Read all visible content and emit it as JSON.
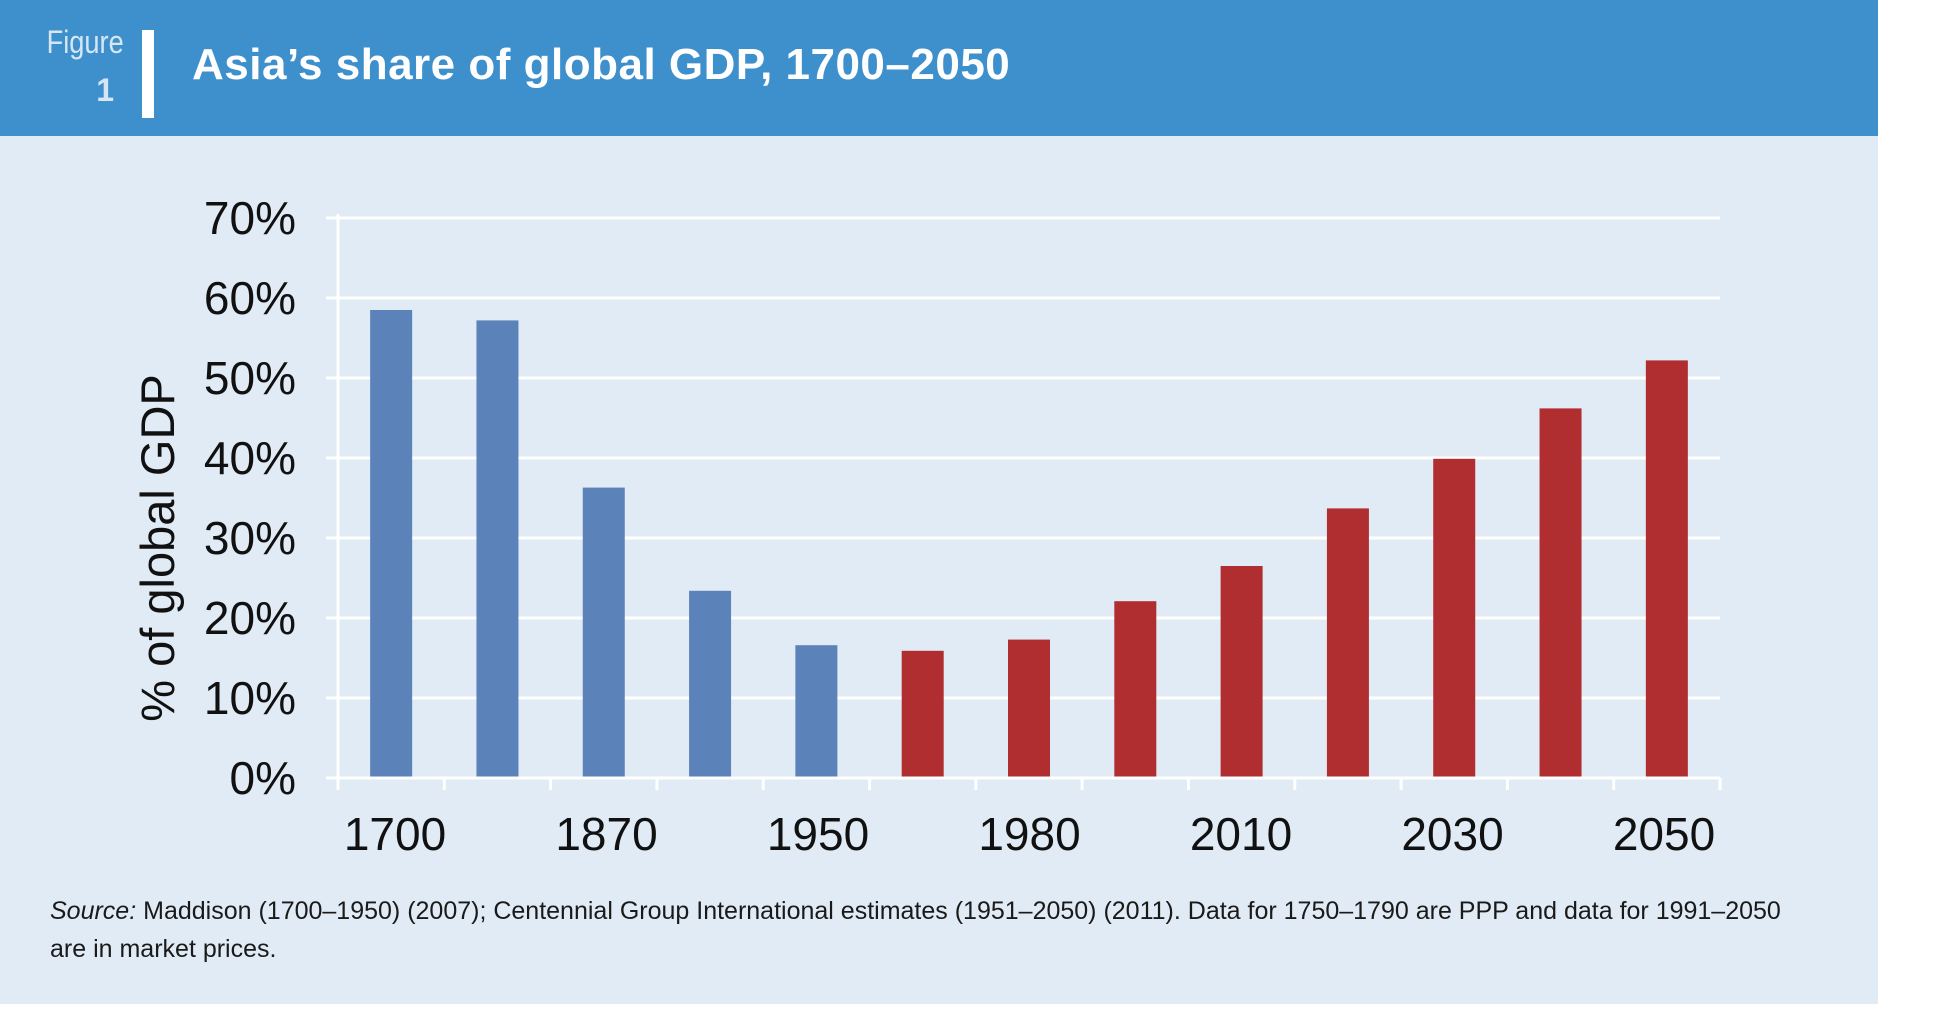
{
  "figure": {
    "word": "Figure",
    "number": "1"
  },
  "title": "Asia’s share of global GDP, 1700–2050",
  "source": {
    "label": "Source:",
    "text": " Maddison (1700–1950) (2007); Centennial Group International estimates (1951–2050) (2011). Data for 1750–1790 are PPP and data for 1991–2050 are in market prices."
  },
  "colors": {
    "historical": "#5b82b9",
    "projected": "#b02e30",
    "header": "#3e90cd",
    "panel": "#e0ebf5"
  },
  "chart_data": {
    "type": "bar",
    "title": "Asia’s share of global GDP, 1700–2050",
    "ylabel": "% of global GDP",
    "xlabel": "",
    "ylim": [
      0,
      70
    ],
    "yticks": [
      "0%",
      "10%",
      "20%",
      "30%",
      "40%",
      "50%",
      "60%",
      "70%"
    ],
    "xtick_labels": [
      "1700",
      "1870",
      "1950",
      "1980",
      "2010",
      "2030",
      "2050"
    ],
    "grid": true,
    "series": [
      {
        "name": "Maddison (1700–1950)",
        "color": "#5b82b9",
        "bars": [
          0,
          1,
          2,
          3,
          4
        ]
      },
      {
        "name": "Centennial Group International estimates (1951–2050)",
        "color": "#b02e30",
        "bars": [
          5,
          6,
          7,
          8,
          9,
          10,
          11,
          12
        ]
      }
    ],
    "values": [
      58.5,
      57.2,
      36.3,
      23.4,
      16.6,
      15.9,
      17.3,
      22.1,
      26.5,
      33.7,
      39.9,
      46.2,
      52.2
    ]
  }
}
